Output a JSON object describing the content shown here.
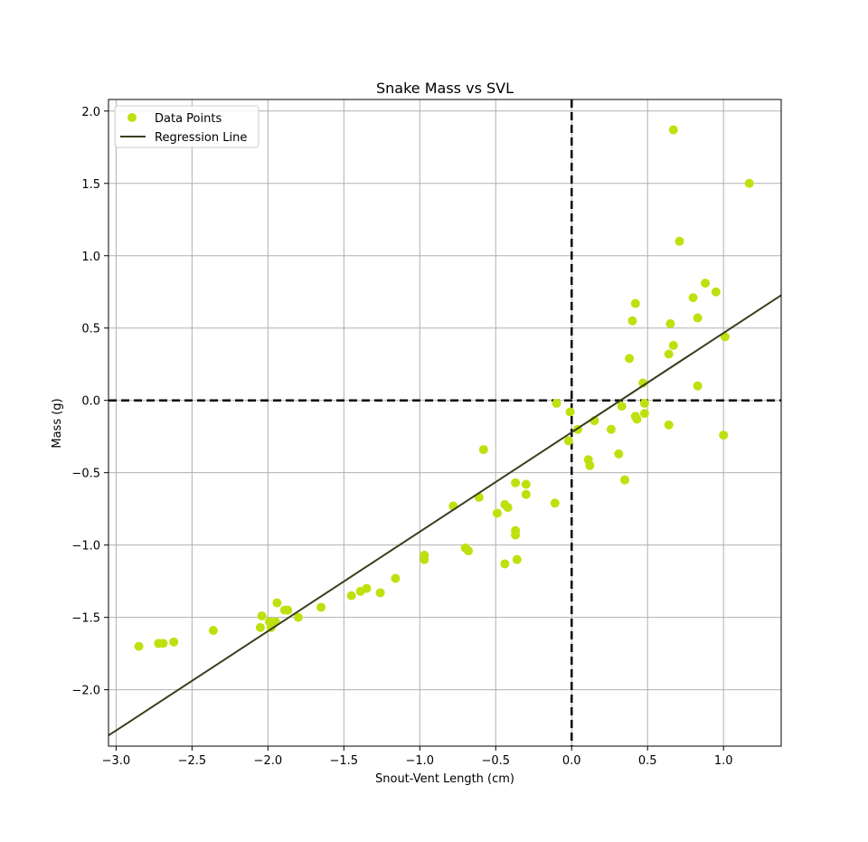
{
  "chart_data": {
    "type": "scatter",
    "title": "Snake Mass vs SVL",
    "xlabel": "Snout-Vent Length (cm)",
    "ylabel": "Mass (g)",
    "xlim": [
      -3.05,
      1.38
    ],
    "ylim": [
      -2.39,
      2.08
    ],
    "xticks": [
      -3.0,
      -2.5,
      -2.0,
      -1.5,
      -1.0,
      -0.5,
      0.0,
      0.5,
      1.0
    ],
    "xtick_labels": [
      "−3.0",
      "−2.5",
      "−2.0",
      "−1.5",
      "−1.0",
      "−0.5",
      "0.0",
      "0.5",
      "1.0"
    ],
    "yticks": [
      -2.0,
      -1.5,
      -1.0,
      -0.5,
      0.0,
      0.5,
      1.0,
      1.5,
      2.0
    ],
    "ytick_labels": [
      "−2.0",
      "−1.5",
      "−1.0",
      "−0.5",
      "0.0",
      "0.5",
      "1.0",
      "1.5",
      "2.0"
    ],
    "grid": true,
    "legend_position": "upper-left",
    "reference_lines": {
      "x": 0.0,
      "y": 0.0
    },
    "colors": {
      "points": "#bfe00e",
      "line": "#3d3d1f",
      "reference": "#000000",
      "grid": "#b0b0b0"
    },
    "series": [
      {
        "name": "Data Points",
        "kind": "scatter",
        "points": [
          [
            -2.85,
            -1.7
          ],
          [
            -2.72,
            -1.68
          ],
          [
            -2.69,
            -1.68
          ],
          [
            -2.62,
            -1.67
          ],
          [
            -2.36,
            -1.59
          ],
          [
            -2.05,
            -1.57
          ],
          [
            -2.04,
            -1.49
          ],
          [
            -1.99,
            -1.53
          ],
          [
            -1.98,
            -1.57
          ],
          [
            -1.97,
            -1.55
          ],
          [
            -1.95,
            -1.53
          ],
          [
            -1.94,
            -1.4
          ],
          [
            -1.89,
            -1.45
          ],
          [
            -1.87,
            -1.45
          ],
          [
            -1.8,
            -1.5
          ],
          [
            -1.65,
            -1.43
          ],
          [
            -1.45,
            -1.35
          ],
          [
            -1.39,
            -1.32
          ],
          [
            -1.35,
            -1.3
          ],
          [
            -1.26,
            -1.33
          ],
          [
            -1.16,
            -1.23
          ],
          [
            -0.97,
            -1.07
          ],
          [
            -0.97,
            -1.1
          ],
          [
            -0.78,
            -0.73
          ],
          [
            -0.7,
            -1.02
          ],
          [
            -0.68,
            -1.04
          ],
          [
            -0.61,
            -0.67
          ],
          [
            -0.58,
            -0.34
          ],
          [
            -0.49,
            -0.78
          ],
          [
            -0.44,
            -1.13
          ],
          [
            -0.44,
            -0.72
          ],
          [
            -0.42,
            -0.74
          ],
          [
            -0.37,
            -0.57
          ],
          [
            -0.37,
            -0.9
          ],
          [
            -0.37,
            -0.93
          ],
          [
            -0.36,
            -1.1
          ],
          [
            -0.3,
            -0.58
          ],
          [
            -0.3,
            -0.65
          ],
          [
            -0.11,
            -0.71
          ],
          [
            -0.1,
            -0.02
          ],
          [
            -0.02,
            -0.28
          ],
          [
            -0.01,
            -0.08
          ],
          [
            0.04,
            -0.2
          ],
          [
            0.11,
            -0.41
          ],
          [
            0.12,
            -0.45
          ],
          [
            0.15,
            -0.14
          ],
          [
            0.26,
            -0.2
          ],
          [
            0.31,
            -0.37
          ],
          [
            0.33,
            -0.04
          ],
          [
            0.35,
            -0.55
          ],
          [
            0.38,
            0.29
          ],
          [
            0.4,
            0.55
          ],
          [
            0.42,
            -0.11
          ],
          [
            0.42,
            0.67
          ],
          [
            0.43,
            -0.13
          ],
          [
            0.47,
            0.12
          ],
          [
            0.48,
            -0.02
          ],
          [
            0.48,
            -0.09
          ],
          [
            0.64,
            -0.17
          ],
          [
            0.64,
            0.32
          ],
          [
            0.65,
            0.53
          ],
          [
            0.67,
            1.87
          ],
          [
            0.67,
            0.38
          ],
          [
            0.71,
            1.1
          ],
          [
            0.8,
            0.71
          ],
          [
            0.83,
            0.57
          ],
          [
            0.83,
            0.1
          ],
          [
            0.88,
            0.81
          ],
          [
            0.95,
            0.75
          ],
          [
            1.0,
            -0.24
          ],
          [
            1.01,
            0.44
          ],
          [
            1.17,
            1.5
          ]
        ]
      },
      {
        "name": "Regression Line",
        "kind": "line",
        "slope": 0.687,
        "intercept": -0.221
      }
    ]
  }
}
